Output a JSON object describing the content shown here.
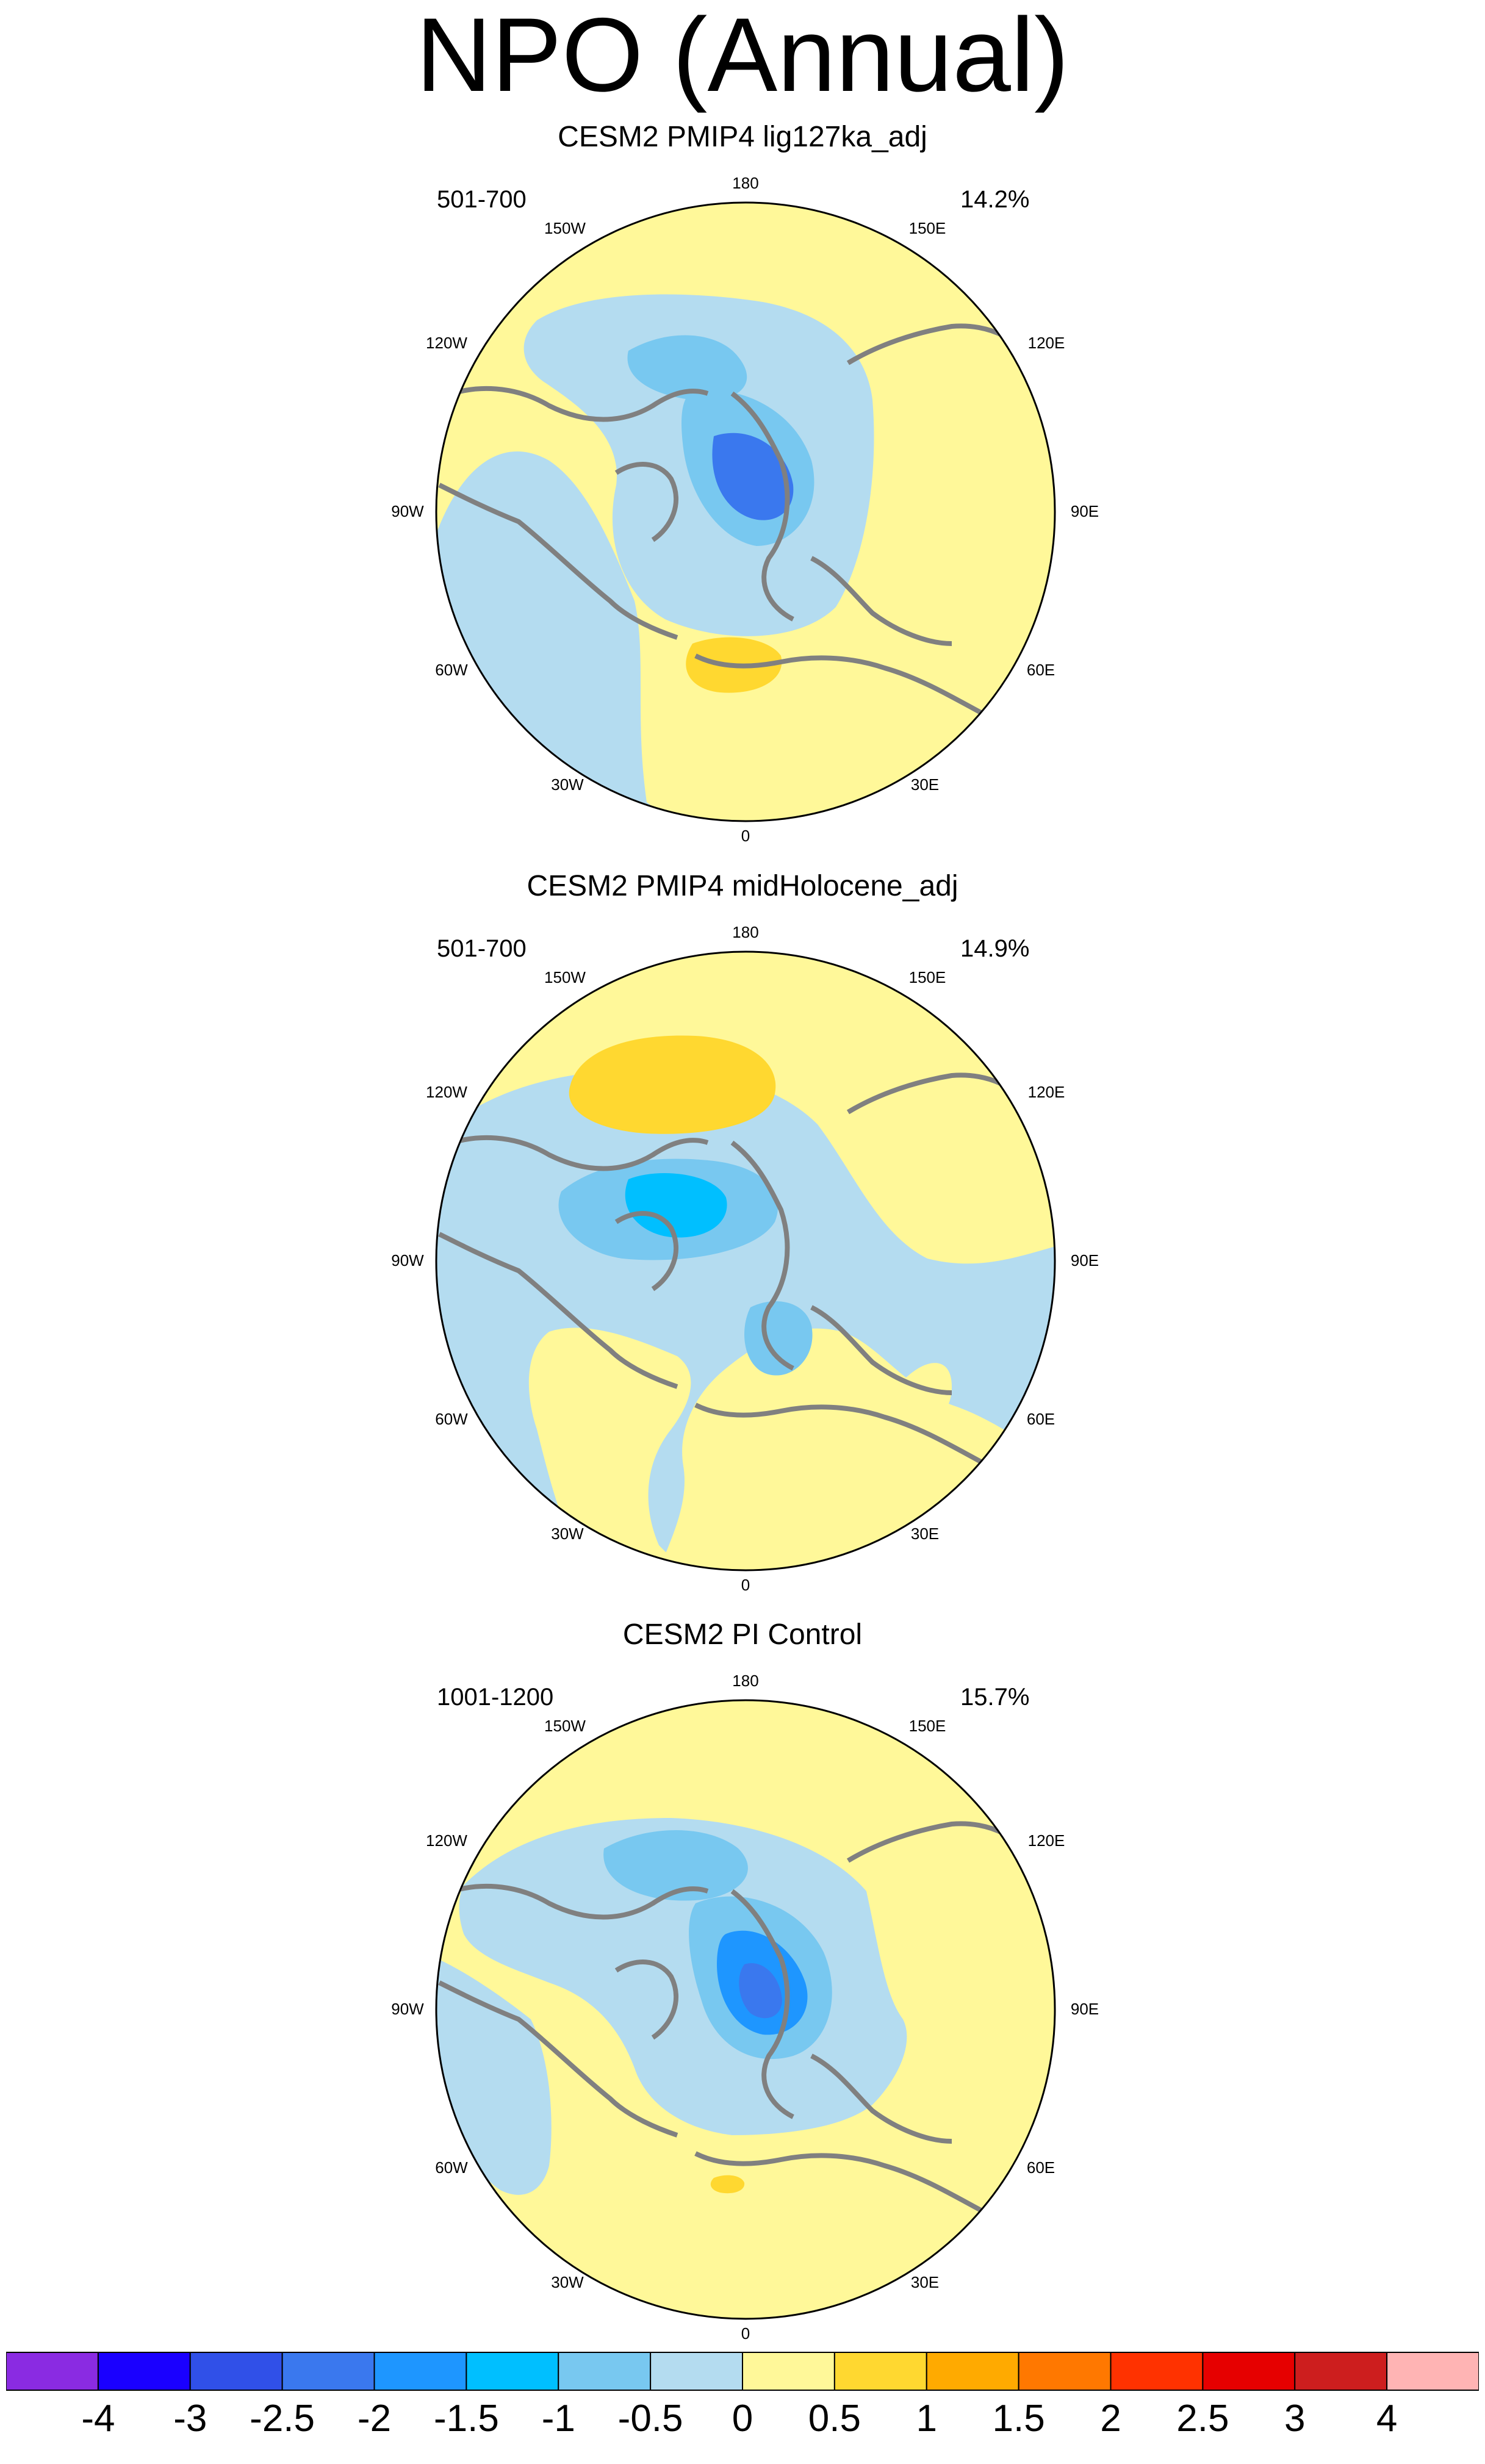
{
  "title": "NPO (Annual)",
  "panels": [
    {
      "title": "CESM2 PMIP4 lig127ka_adj",
      "period": "501-700",
      "variance": "14.2%"
    },
    {
      "title": "CESM2 PMIP4 midHolocene_adj",
      "period": "501-700",
      "variance": "14.9%"
    },
    {
      "title": "CESM2 PI Control",
      "period": "1001-1200",
      "variance": "15.7%"
    }
  ],
  "longitude_labels": [
    "180",
    "150E",
    "120E",
    "90E",
    "60E",
    "30E",
    "0",
    "30W",
    "60W",
    "90W",
    "120W",
    "150W"
  ],
  "colorbar": {
    "labels": [
      "-4",
      "-3",
      "-2.5",
      "-2",
      "-1.5",
      "-1",
      "-0.5",
      "0",
      "0.5",
      "1",
      "1.5",
      "2",
      "2.5",
      "3",
      "4"
    ],
    "colors": [
      "#8a2be2",
      "#1a00ff",
      "#3050e8",
      "#3a78ee",
      "#1e96ff",
      "#00bfff",
      "#78c8f0",
      "#b4dcf0",
      "#fff899",
      "#ffd830",
      "#ffaa00",
      "#ff7800",
      "#ff3200",
      "#e60000",
      "#cd1e1e",
      "#ffb4b4"
    ]
  },
  "colors": {
    "land_outline": "#808080",
    "map_background": "#fff899"
  }
}
